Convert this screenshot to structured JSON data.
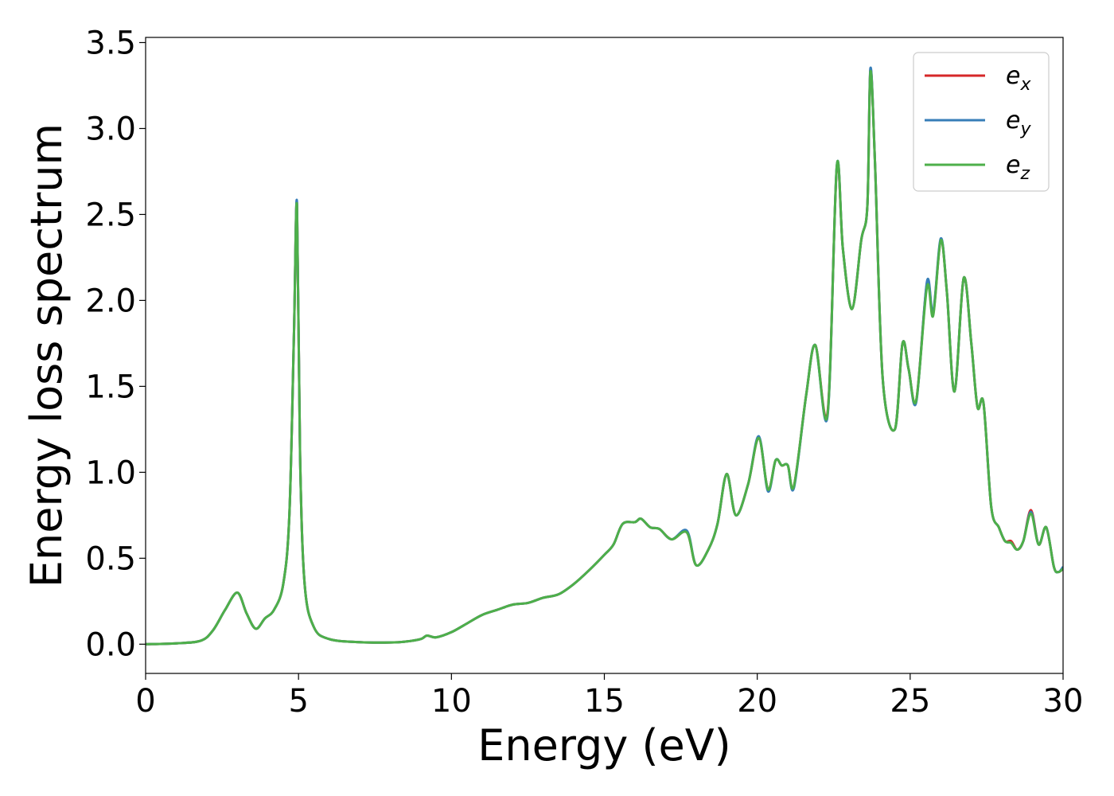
{
  "chart_data": {
    "type": "line",
    "xlabel": "Energy (eV)",
    "ylabel": "Energy loss spectrum",
    "xlim": [
      0,
      30
    ],
    "ylim": [
      -0.17,
      3.53
    ],
    "xticks": [
      0,
      5,
      10,
      15,
      20,
      25,
      30
    ],
    "xtick_labels": [
      "0",
      "5",
      "10",
      "15",
      "20",
      "25",
      "30"
    ],
    "yticks": [
      0.0,
      0.5,
      1.0,
      1.5,
      2.0,
      2.5,
      3.0,
      3.5
    ],
    "ytick_labels": [
      "0.0",
      "0.5",
      "1.0",
      "1.5",
      "2.0",
      "2.5",
      "3.0",
      "3.5"
    ],
    "grid": false,
    "legend_position": "top-right",
    "colors": {
      "ex": "#d62728",
      "ey": "#377eb8",
      "ez": "#4daf4a"
    },
    "x": [
      0,
      1,
      1.8,
      2.2,
      2.6,
      3.0,
      3.3,
      3.6,
      3.9,
      4.2,
      4.5,
      4.7,
      4.85,
      4.95,
      5.05,
      5.2,
      5.5,
      6,
      7,
      8,
      8.5,
      9,
      9.2,
      9.5,
      10,
      10.5,
      11,
      11.5,
      12,
      12.5,
      13,
      13.5,
      14,
      14.5,
      15,
      15.3,
      15.6,
      16,
      16.2,
      16.5,
      16.8,
      17.2,
      17.7,
      18.0,
      18.4,
      18.7,
      19.0,
      19.3,
      19.7,
      20.05,
      20.35,
      20.6,
      20.8,
      21.0,
      21.2,
      21.6,
      21.9,
      22.3,
      22.6,
      22.8,
      23.1,
      23.4,
      23.6,
      23.7,
      23.85,
      24.1,
      24.5,
      24.75,
      24.95,
      25.2,
      25.55,
      25.75,
      26.0,
      26.2,
      26.45,
      26.75,
      27.0,
      27.2,
      27.4,
      27.65,
      27.9,
      28.1,
      28.3,
      28.5,
      28.7,
      28.95,
      29.2,
      29.45,
      29.7,
      29.85,
      30.0
    ],
    "series": [
      {
        "name": "e_x",
        "label_base": "e",
        "label_sub": "x",
        "values": [
          0.0,
          0.005,
          0.02,
          0.08,
          0.2,
          0.3,
          0.18,
          0.09,
          0.15,
          0.2,
          0.35,
          0.75,
          1.8,
          2.56,
          1.1,
          0.35,
          0.1,
          0.03,
          0.012,
          0.01,
          0.015,
          0.03,
          0.05,
          0.04,
          0.07,
          0.12,
          0.17,
          0.2,
          0.23,
          0.24,
          0.27,
          0.29,
          0.35,
          0.43,
          0.52,
          0.58,
          0.7,
          0.71,
          0.73,
          0.68,
          0.67,
          0.61,
          0.65,
          0.46,
          0.55,
          0.7,
          0.99,
          0.75,
          0.93,
          1.2,
          0.9,
          1.07,
          1.04,
          1.04,
          0.92,
          1.45,
          1.74,
          1.35,
          2.77,
          2.3,
          1.95,
          2.35,
          2.55,
          3.34,
          2.8,
          1.55,
          1.25,
          1.75,
          1.6,
          1.42,
          2.1,
          1.92,
          2.35,
          2.05,
          1.47,
          2.13,
          1.75,
          1.38,
          1.4,
          0.8,
          0.68,
          0.6,
          0.6,
          0.55,
          0.6,
          0.78,
          0.58,
          0.68,
          0.45,
          0.42,
          0.44
        ]
      },
      {
        "name": "e_y",
        "label_base": "e",
        "label_sub": "y",
        "values": [
          0.0,
          0.005,
          0.02,
          0.08,
          0.2,
          0.3,
          0.18,
          0.09,
          0.15,
          0.2,
          0.35,
          0.75,
          1.8,
          2.57,
          1.1,
          0.35,
          0.1,
          0.03,
          0.012,
          0.01,
          0.015,
          0.03,
          0.05,
          0.04,
          0.07,
          0.12,
          0.17,
          0.2,
          0.23,
          0.24,
          0.27,
          0.29,
          0.35,
          0.43,
          0.52,
          0.58,
          0.7,
          0.71,
          0.73,
          0.68,
          0.67,
          0.61,
          0.66,
          0.46,
          0.55,
          0.7,
          0.99,
          0.75,
          0.93,
          1.21,
          0.89,
          1.07,
          1.04,
          1.04,
          0.91,
          1.45,
          1.74,
          1.33,
          2.78,
          2.3,
          1.95,
          2.35,
          2.55,
          3.35,
          2.8,
          1.55,
          1.25,
          1.75,
          1.6,
          1.41,
          2.11,
          1.93,
          2.36,
          2.05,
          1.47,
          2.13,
          1.75,
          1.38,
          1.4,
          0.8,
          0.68,
          0.6,
          0.59,
          0.55,
          0.6,
          0.77,
          0.58,
          0.68,
          0.45,
          0.42,
          0.45
        ]
      },
      {
        "name": "e_z",
        "label_base": "e",
        "label_sub": "z",
        "values": [
          0.0,
          0.005,
          0.02,
          0.08,
          0.2,
          0.3,
          0.18,
          0.09,
          0.15,
          0.2,
          0.35,
          0.75,
          1.8,
          2.55,
          1.1,
          0.35,
          0.1,
          0.03,
          0.012,
          0.01,
          0.015,
          0.03,
          0.05,
          0.04,
          0.07,
          0.12,
          0.17,
          0.2,
          0.23,
          0.24,
          0.27,
          0.29,
          0.35,
          0.43,
          0.52,
          0.58,
          0.7,
          0.71,
          0.73,
          0.68,
          0.67,
          0.61,
          0.65,
          0.46,
          0.55,
          0.7,
          0.99,
          0.75,
          0.93,
          1.2,
          0.9,
          1.07,
          1.04,
          1.04,
          0.92,
          1.45,
          1.74,
          1.34,
          2.78,
          2.3,
          1.95,
          2.35,
          2.55,
          3.33,
          2.8,
          1.55,
          1.25,
          1.75,
          1.6,
          1.42,
          2.08,
          1.91,
          2.35,
          2.05,
          1.47,
          2.13,
          1.75,
          1.38,
          1.4,
          0.8,
          0.68,
          0.6,
          0.59,
          0.55,
          0.6,
          0.76,
          0.58,
          0.68,
          0.45,
          0.42,
          0.44
        ]
      }
    ]
  }
}
